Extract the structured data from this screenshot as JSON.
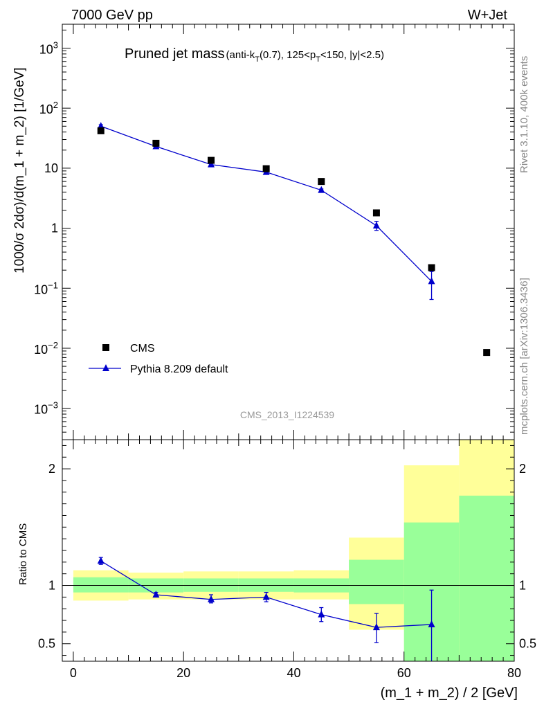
{
  "header": {
    "left": "7000 GeV pp",
    "right": "W+Jet"
  },
  "title": {
    "main": "Pruned jet mass",
    "cut_prefix": "(anti-k",
    "cut_sub1": "T",
    "cut_mid": "(0.7), 125<p",
    "cut_sub2": "T",
    "cut_suffix": "<150, |y|<2.5)"
  },
  "side_labels": {
    "rivet": "Rivet 3.1.10,  400k events",
    "mcplots": "mcplots.cern.ch [arXiv:1306.3436]"
  },
  "watermark": "CMS_2013_I1224539",
  "colors": {
    "mc": "#0000cc",
    "band_inner": "#99ff99",
    "band_outer": "#ffff99",
    "data": "#000000"
  },
  "chart_data": [
    {
      "type": "scatter",
      "panel": "main",
      "ylabel": "1000/σ 2dσ)/d(m_1 + m_2) [1/GeV]",
      "yscale": "log",
      "ylim": [
        0.0003,
        2500
      ],
      "xlim": [
        -2,
        80
      ],
      "yticks": [
        {
          "v": 1000,
          "base": "10",
          "exp": "3"
        },
        {
          "v": 100,
          "base": "10",
          "exp": "2"
        },
        {
          "v": 10,
          "base": "10",
          "exp": ""
        },
        {
          "v": 1,
          "base": "1",
          "exp": ""
        },
        {
          "v": 0.1,
          "base": "10",
          "exp": "−1"
        },
        {
          "v": 0.01,
          "base": "10",
          "exp": "−2"
        },
        {
          "v": 0.001,
          "base": "10",
          "exp": "−3"
        }
      ],
      "legend": [
        {
          "name": "CMS",
          "marker": "square"
        },
        {
          "name": "Pythia 8.209 default",
          "marker": "triangle-line"
        }
      ],
      "series": [
        {
          "name": "CMS",
          "x": [
            5,
            15,
            25,
            35,
            45,
            55,
            65,
            75
          ],
          "values": [
            42,
            26,
            13.5,
            9.8,
            6.0,
            1.8,
            0.22,
            0.0085
          ]
        },
        {
          "name": "Pythia 8.209 default",
          "x": [
            5,
            15,
            25,
            35,
            45,
            55,
            65
          ],
          "values": [
            50,
            23,
            11.5,
            8.6,
            4.3,
            1.1,
            0.13
          ],
          "err_low": [
            47,
            22,
            11.0,
            8.2,
            4.1,
            0.92,
            0.065
          ],
          "err_high": [
            53,
            24,
            12.0,
            9.0,
            4.5,
            1.3,
            0.19
          ]
        }
      ]
    },
    {
      "type": "scatter",
      "panel": "ratio",
      "ylabel": "Ratio to CMS",
      "xlabel": "(m_1 + m_2) / 2 [GeV]",
      "xlim": [
        -2,
        80
      ],
      "ylim": [
        0.35,
        2.25
      ],
      "xticks": [
        "0",
        "20",
        "40",
        "60",
        "80"
      ],
      "yticks": [
        "0.5",
        "1",
        "2"
      ],
      "bands": [
        {
          "x0": 0,
          "x1": 10,
          "inner": [
            0.94,
            1.07
          ],
          "outer": [
            0.87,
            1.13
          ]
        },
        {
          "x0": 10,
          "x1": 20,
          "inner": [
            0.94,
            1.06
          ],
          "outer": [
            0.88,
            1.11
          ]
        },
        {
          "x0": 20,
          "x1": 30,
          "inner": [
            0.945,
            1.06
          ],
          "outer": [
            0.88,
            1.12
          ]
        },
        {
          "x0": 30,
          "x1": 40,
          "inner": [
            0.945,
            1.06
          ],
          "outer": [
            0.88,
            1.12
          ]
        },
        {
          "x0": 40,
          "x1": 50,
          "inner": [
            0.94,
            1.06
          ],
          "outer": [
            0.88,
            1.13
          ]
        },
        {
          "x0": 50,
          "x1": 60,
          "inner": [
            0.84,
            1.22
          ],
          "outer": [
            0.62,
            1.41
          ]
        },
        {
          "x0": 60,
          "x1": 70,
          "inner": [
            0.35,
            1.54
          ],
          "outer": [
            0.35,
            2.03
          ]
        },
        {
          "x0": 70,
          "x1": 80,
          "inner": [
            0.35,
            1.77
          ],
          "outer": [
            0.35,
            2.25
          ]
        }
      ],
      "series": [
        {
          "name": "Pythia 8.209 default",
          "x": [
            5,
            15,
            25,
            35,
            45,
            55,
            65
          ],
          "values": [
            1.21,
            0.92,
            0.88,
            0.9,
            0.75,
            0.64,
            0.665
          ],
          "err_low": [
            1.18,
            0.9,
            0.85,
            0.86,
            0.69,
            0.51,
            0.35
          ],
          "err_high": [
            1.24,
            0.94,
            0.92,
            0.94,
            0.81,
            0.76,
            0.96
          ]
        }
      ]
    }
  ]
}
